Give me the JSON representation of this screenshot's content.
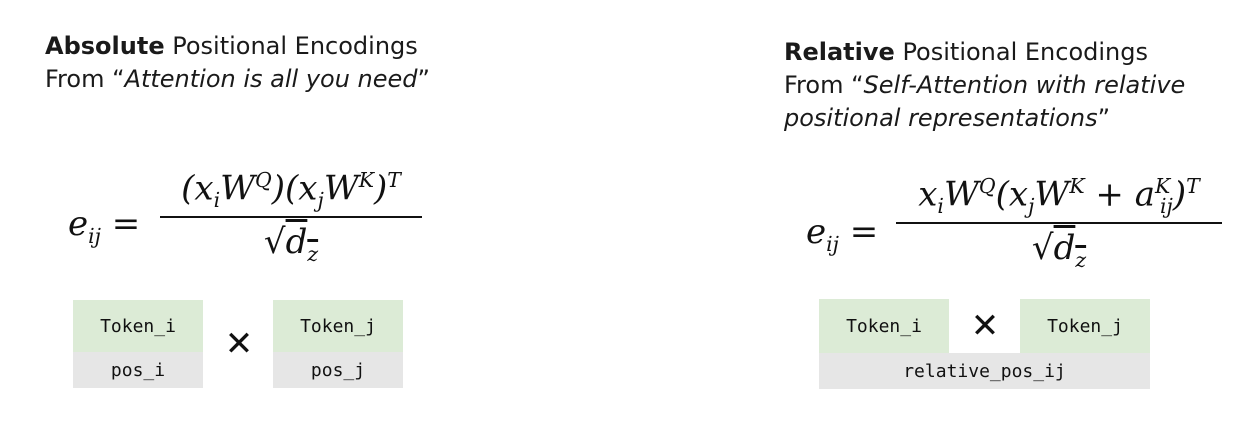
{
  "left": {
    "heading_bold": "Absolute",
    "heading_rest": " Positional Encodings",
    "source_prefix": "From “",
    "source_italic": "Attention is all you need",
    "source_suffix": "”",
    "formula": {
      "lhs": "e",
      "lhs_sub": "ij",
      "equals": "=",
      "numerator": "(x_i W^Q)(x_j W^K)^T",
      "denominator": "√d_z"
    },
    "token_i": "Token_i",
    "token_j": "Token_j",
    "pos_i": "pos_i",
    "pos_j": "pos_j",
    "operator": "✕"
  },
  "right": {
    "heading_bold": "Relative",
    "heading_rest": " Positional Encodings",
    "source_prefix": "From “",
    "source_italic_line1": "Self-Attention with relative",
    "source_italic_line2": "positional representations",
    "source_suffix": "”",
    "formula": {
      "lhs": "e",
      "lhs_sub": "ij",
      "equals": "=",
      "numerator": "x_i W^Q (x_j W^K + a_ij^K)^T",
      "denominator": "√d_z"
    },
    "token_i": "Token_i",
    "token_j": "Token_j",
    "relative_pos": "relative_pos_ij",
    "operator": "✕"
  }
}
